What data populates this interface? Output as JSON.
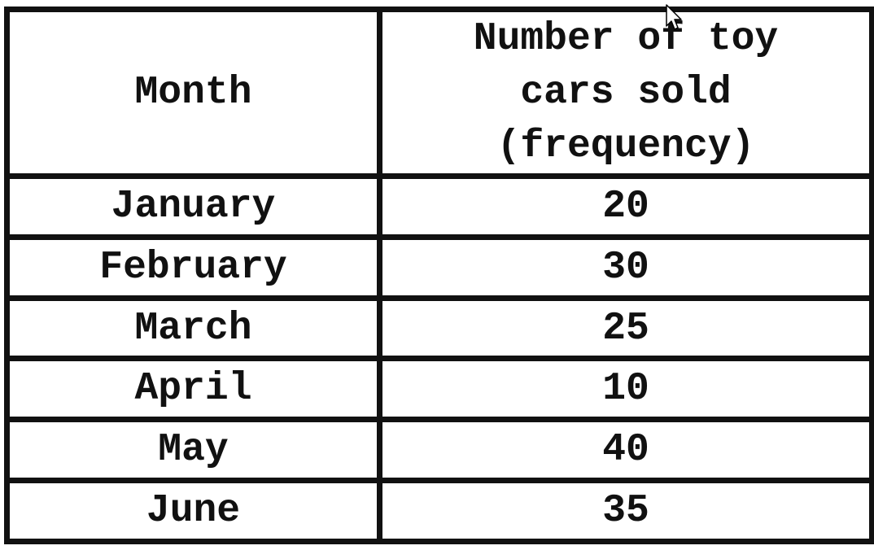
{
  "table": {
    "headers": {
      "month": "Month",
      "frequency": "Number of toy cars sold (frequency)"
    },
    "rows": [
      {
        "month": "January",
        "frequency": "20"
      },
      {
        "month": "February",
        "frequency": "30"
      },
      {
        "month": "March",
        "frequency": "25"
      },
      {
        "month": "April",
        "frequency": "10"
      },
      {
        "month": "May",
        "frequency": "40"
      },
      {
        "month": "June",
        "frequency": "35"
      }
    ]
  },
  "cursor": {
    "icon": "mouse-pointer-icon"
  }
}
